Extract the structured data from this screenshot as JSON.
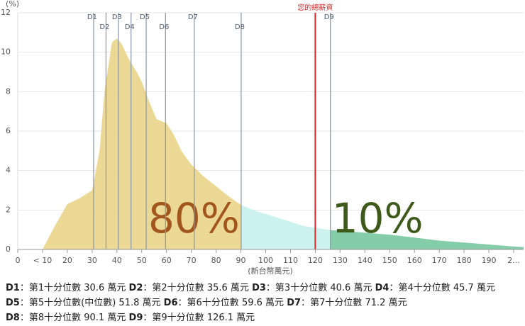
{
  "chart_data": {
    "type": "area",
    "y_unit": "(%)",
    "x_label": "(新台幣萬元)",
    "xlim": [
      0,
      204
    ],
    "ylim": [
      0,
      12
    ],
    "xticks": [
      0,
      {
        "value": 10,
        "label": "< 10"
      },
      20,
      30,
      40,
      50,
      60,
      70,
      80,
      90,
      100,
      110,
      120,
      130,
      140,
      150,
      160,
      170,
      180,
      190,
      {
        "value": 200,
        "label": "2..."
      }
    ],
    "yticks": [
      0,
      2,
      4,
      6,
      8,
      10,
      12
    ],
    "grid": true,
    "x": [
      10,
      15,
      20,
      25,
      30,
      33,
      35,
      38,
      40,
      42,
      45,
      48,
      50,
      53,
      56,
      60,
      63,
      66,
      70,
      75,
      80,
      85,
      90.1,
      95,
      100,
      105,
      110,
      115,
      120,
      126.1,
      130,
      135,
      140,
      145,
      150,
      160,
      170,
      180,
      190,
      200,
      204
    ],
    "values": [
      0,
      1.2,
      2.3,
      2.6,
      3.0,
      5,
      8,
      10.5,
      10.7,
      10.4,
      9.6,
      9.0,
      8.5,
      7.5,
      6.6,
      6.4,
      5.8,
      5.0,
      4.3,
      3.7,
      3.2,
      2.7,
      2.25,
      2.0,
      1.8,
      1.6,
      1.4,
      1.2,
      1.1,
      0.98,
      0.95,
      0.9,
      0.85,
      0.8,
      0.75,
      0.6,
      0.45,
      0.35,
      0.25,
      0.15,
      0.12
    ],
    "bands": [
      {
        "from": 10,
        "to": 90.1,
        "color": "#ead48a",
        "label": "80%",
        "label_color": "#a0561c"
      },
      {
        "from": 90.1,
        "to": 126.1,
        "color": "#c6f1ee"
      },
      {
        "from": 126.1,
        "to": 204,
        "color": "#78c79f",
        "label": "10%",
        "label_color": "#3d5a1a"
      }
    ],
    "separator": "：",
    "unit": "萬元",
    "deciles": [
      {
        "name": "D1",
        "text": "第1十分位數",
        "value": 30.6
      },
      {
        "name": "D2",
        "text": "第2十分位數",
        "value": 35.6
      },
      {
        "name": "D3",
        "text": "第3十分位數",
        "value": 40.6
      },
      {
        "name": "D4",
        "text": "第4十分位數",
        "value": 45.7
      },
      {
        "name": "D5",
        "text": "第5十分位數(中位數)",
        "value": 51.8
      },
      {
        "name": "D6",
        "text": "第6十分位數",
        "value": 59.6
      },
      {
        "name": "D7",
        "text": "第7十分位數",
        "value": 71.2
      },
      {
        "name": "D8",
        "text": "第8十分位數",
        "value": 90.1
      },
      {
        "name": "D9",
        "text": "第9十分位數",
        "value": 126.1
      }
    ],
    "marker": {
      "label": "您的總薪資",
      "value": 120,
      "color": "#d62828"
    }
  }
}
